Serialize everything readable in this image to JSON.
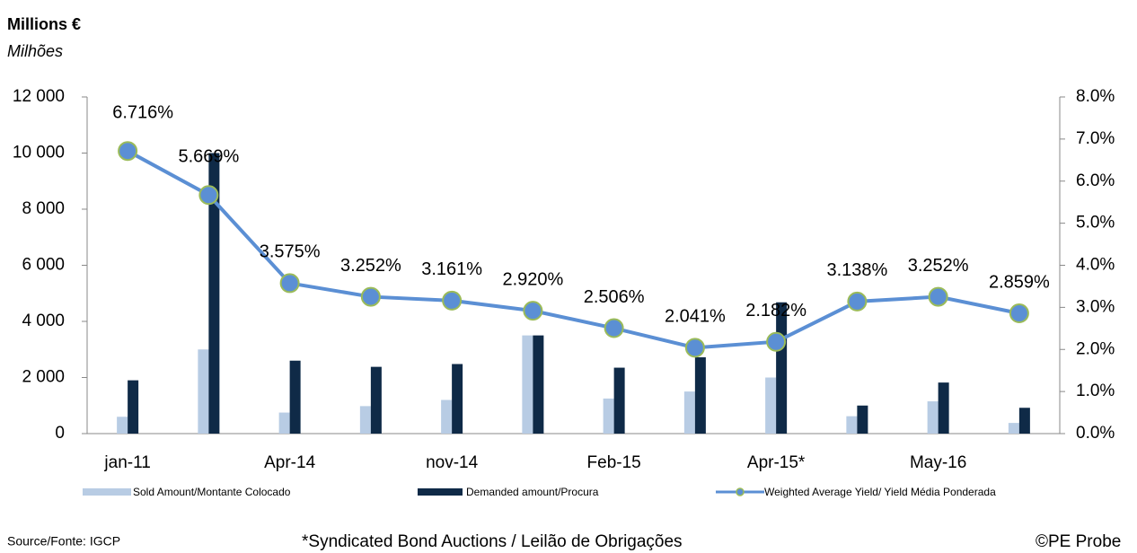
{
  "chart_data": {
    "type": "bar_line",
    "title": "Millions €",
    "subtitle": "Milhões",
    "categories": [
      "jan-11",
      null,
      "Apr-14",
      null,
      "nov-14",
      null,
      "Feb-15",
      null,
      "Apr-15*",
      null,
      "May-16",
      null
    ],
    "series": [
      {
        "name": "Sold Amount/Montante Colocado",
        "color": "#b8cce4",
        "type": "bar",
        "values": [
          600,
          3000,
          750,
          980,
          1200,
          3500,
          1250,
          1500,
          2000,
          620,
          1150,
          380
        ]
      },
      {
        "name": "Demanded amount/Procura",
        "color": "#0f2a47",
        "type": "bar",
        "values": [
          1900,
          10000,
          2600,
          2380,
          2480,
          3500,
          2350,
          2720,
          4680,
          1000,
          1820,
          920
        ]
      },
      {
        "name": "Weighted Average Yield/ Yield Média Ponderada",
        "color": "#5b8fd4",
        "type": "line",
        "axis": "y2",
        "values": [
          6.716,
          5.669,
          3.575,
          3.252,
          3.161,
          2.92,
          2.506,
          2.041,
          2.182,
          3.138,
          3.252,
          2.859
        ],
        "value_labels": [
          "6.716%",
          "5.669%",
          "3.575%",
          "3.252%",
          "3.161%",
          "2.920%",
          "2.506%",
          "2.041%",
          "2.182%",
          "3.138%",
          "3.252%",
          "2.859%"
        ]
      }
    ],
    "ylim": [
      0,
      12000
    ],
    "yticks": [
      {
        "value": 0,
        "label": "0"
      },
      {
        "value": 2000,
        "label": "2 000"
      },
      {
        "value": 4000,
        "label": "4 000"
      },
      {
        "value": 6000,
        "label": "6 000"
      },
      {
        "value": 8000,
        "label": "8 000"
      },
      {
        "value": 10000,
        "label": "10 000"
      },
      {
        "value": 12000,
        "label": "12 000"
      }
    ],
    "y2lim": [
      0,
      8
    ],
    "y2ticks": [
      {
        "value": 0,
        "label": "0.0%"
      },
      {
        "value": 1,
        "label": "1.0%"
      },
      {
        "value": 2,
        "label": "2.0%"
      },
      {
        "value": 3,
        "label": "3.0%"
      },
      {
        "value": 4,
        "label": "4.0%"
      },
      {
        "value": 5,
        "label": "5.0%"
      },
      {
        "value": 6,
        "label": "6.0%"
      },
      {
        "value": 7,
        "label": "7.0%"
      },
      {
        "value": 8,
        "label": "8.0%"
      }
    ],
    "grid": false,
    "source": "Source/Fonte: IGCP",
    "note": "*Syndicated Bond Auctions / Leilão de Obrigações",
    "credit": "©PE Probe"
  }
}
